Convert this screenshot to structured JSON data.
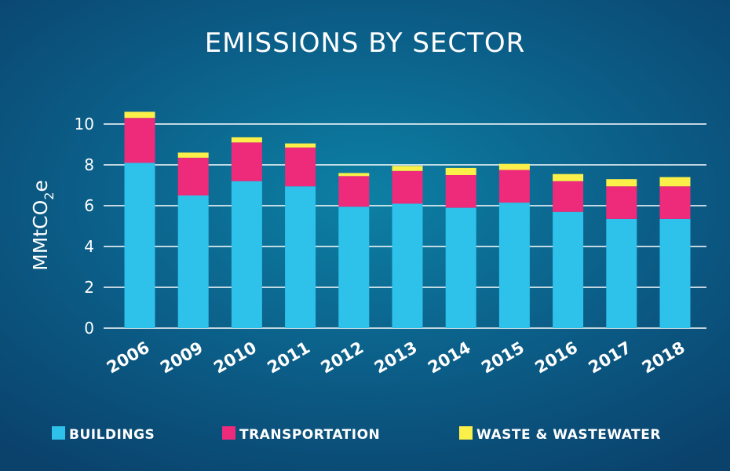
{
  "chart_data": {
    "type": "bar",
    "stacked": true,
    "title": "EMISSIONS BY SECTOR",
    "ylabel_main": "MMtCO",
    "ylabel_sub": "2",
    "ylabel_tail": "e",
    "xlabel": "",
    "ylim": [
      0,
      10
    ],
    "yticks": [
      0,
      2,
      4,
      6,
      8,
      10
    ],
    "grid": true,
    "legend": "bottom",
    "categories": [
      "2006",
      "2009",
      "2010",
      "2011",
      "2012",
      "2013",
      "2014",
      "2015",
      "2016",
      "2017",
      "2018"
    ],
    "series": [
      {
        "name": "BUILDINGS",
        "color": "#2ec1ea",
        "values": [
          8.1,
          6.5,
          7.2,
          6.95,
          5.95,
          6.1,
          5.9,
          6.15,
          5.7,
          5.35,
          5.35
        ]
      },
      {
        "name": "TRANSPORTATION",
        "color": "#ee2a7b",
        "values": [
          2.2,
          1.85,
          1.9,
          1.9,
          1.5,
          1.6,
          1.6,
          1.6,
          1.5,
          1.6,
          1.6
        ]
      },
      {
        "name": "WASTE & WASTEWATER",
        "color": "#faf049",
        "values": [
          0.3,
          0.25,
          0.25,
          0.2,
          0.15,
          0.25,
          0.35,
          0.3,
          0.35,
          0.35,
          0.45
        ]
      }
    ]
  }
}
